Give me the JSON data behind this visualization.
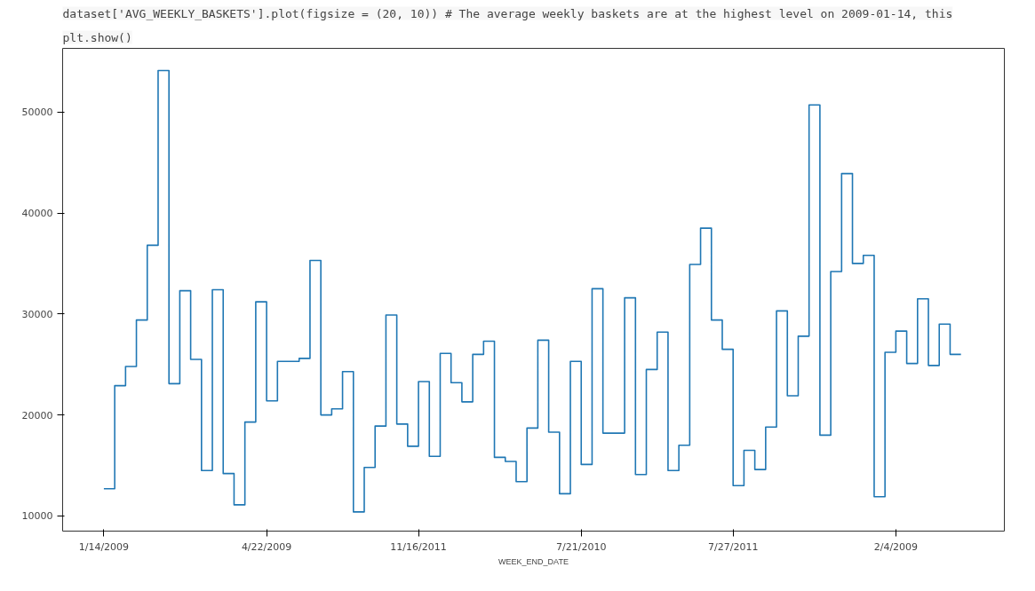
{
  "chart_data": {
    "type": "step",
    "xlabel": "WEEK_END_DATE",
    "annotations": [
      "dataset['AVG_WEEKLY_BASKETS'].plot(figsize = (20, 10)) # The average weekly baskets are at the highest level on 2009-01-14, this",
      "plt.show()"
    ],
    "categories": [
      "1/14/2009",
      null,
      null,
      null,
      null,
      null,
      null,
      null,
      null,
      null,
      null,
      null,
      null,
      null,
      null,
      "4/22/2009",
      null,
      null,
      null,
      null,
      null,
      null,
      null,
      null,
      null,
      null,
      null,
      null,
      null,
      "11/16/2011",
      null,
      null,
      null,
      null,
      null,
      null,
      null,
      null,
      null,
      null,
      null,
      null,
      null,
      null,
      "7/21/2010",
      null,
      null,
      null,
      null,
      null,
      null,
      null,
      null,
      null,
      null,
      null,
      null,
      null,
      "7/27/2011",
      null,
      null,
      null,
      null,
      null,
      null,
      null,
      null,
      null,
      null,
      null,
      null,
      null,
      null,
      "2/4/2009",
      null,
      null,
      null,
      null,
      null,
      null
    ],
    "series": [
      {
        "color": "#1f77b4",
        "values": [
          12700,
          22900,
          24800,
          29400,
          36800,
          54100,
          23100,
          32300,
          25500,
          14500,
          32400,
          14200,
          11100,
          19300,
          31200,
          21400,
          25300,
          25300,
          25600,
          35300,
          20000,
          20600,
          24300,
          10400,
          14800,
          18900,
          29900,
          19100,
          16900,
          23300,
          15900,
          26100,
          23200,
          21300,
          26000,
          27300,
          15800,
          15400,
          13400,
          18700,
          27400,
          18300,
          12200,
          25300,
          15100,
          32500,
          18200,
          18200,
          31600,
          14100,
          24500,
          28200,
          14500,
          17000,
          34900,
          38500,
          29400,
          26500,
          13000,
          16500,
          14600,
          18800,
          30300,
          21900,
          27800,
          50700,
          18000,
          34200,
          43900,
          35000,
          35800,
          11900,
          26200,
          28300,
          25100,
          31500,
          24900,
          29000,
          26000,
          26000
        ]
      }
    ],
    "ylim": [
      8500,
      56300
    ],
    "yticks": [
      10000,
      20000,
      30000,
      40000,
      50000
    ],
    "grid": false
  }
}
